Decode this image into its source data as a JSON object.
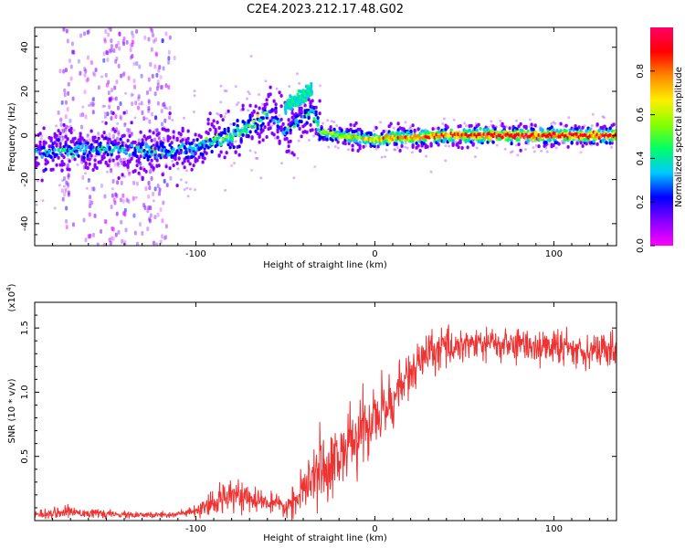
{
  "title": "C2E4.2023.212.17.48.G02",
  "chart_data": [
    {
      "type": "heatmap",
      "xlabel": "Height of straight line (km)",
      "ylabel": "Frequency (Hz)",
      "xlim": [
        -190,
        135
      ],
      "ylim": [
        -50,
        49
      ],
      "x_ticks": [
        -100,
        0,
        100
      ],
      "y_ticks": [
        -40,
        -20,
        0,
        20,
        40
      ],
      "colorbar": {
        "label": "Normalized spectral amplitude",
        "range": [
          0.0,
          1.0
        ],
        "ticks": [
          "0.0",
          "0.2",
          "0.4",
          "0.6",
          "0.8"
        ],
        "colormap": [
          "#ff00ff",
          "#8800ff",
          "#0000ff",
          "#00c8ff",
          "#00ff66",
          "#88ff00",
          "#ffee00",
          "#ff8800",
          "#ff0000",
          "#ff0066"
        ]
      },
      "ridge": {
        "x": [
          -190,
          -170,
          -150,
          -130,
          -110,
          -100,
          -90,
          -80,
          -70,
          -62,
          -58,
          -50,
          -45,
          -40,
          -35,
          -30,
          -20,
          -10,
          0,
          10,
          20,
          40,
          60,
          80,
          100,
          120,
          135
        ],
        "y": [
          -8,
          -7,
          -6,
          -7,
          -7,
          -6,
          -3,
          0,
          4,
          8,
          10,
          2,
          4,
          8,
          12,
          1,
          0,
          -1,
          -2,
          -1,
          -1,
          0,
          0,
          0,
          0,
          0,
          0
        ],
        "amplitude": [
          0.3,
          0.35,
          0.35,
          0.35,
          0.35,
          0.35,
          0.4,
          0.45,
          0.45,
          0.4,
          0.3,
          0.3,
          0.35,
          0.35,
          0.35,
          0.55,
          0.6,
          0.65,
          0.7,
          0.75,
          0.8,
          0.85,
          0.9,
          0.9,
          0.9,
          0.9,
          0.9
        ]
      },
      "upper_branch": {
        "x": [
          -50,
          -45,
          -40,
          -35
        ],
        "y": [
          13,
          15,
          18,
          21
        ]
      }
    },
    {
      "type": "line",
      "xlabel": "Height of straight line (km)",
      "ylabel": "SNR (10 * v/v)",
      "exponent_label": "(x10",
      "exponent_power": "4",
      "xlim": [
        -190,
        135
      ],
      "ylim": [
        0,
        1.7
      ],
      "x_ticks": [
        -100,
        0,
        100
      ],
      "y_ticks": [
        "0.5",
        "1.0",
        "1.5"
      ],
      "series": [
        {
          "color": "#ee3333",
          "x": [
            -190,
            -170,
            -150,
            -130,
            -110,
            -100,
            -90,
            -85,
            -80,
            -75,
            -70,
            -65,
            -60,
            -55,
            -50,
            -45,
            -40,
            -35,
            -30,
            -25,
            -20,
            -15,
            -10,
            -5,
            0,
            5,
            10,
            15,
            20,
            25,
            30,
            40,
            50,
            60,
            70,
            80,
            90,
            100,
            110,
            120,
            135
          ],
          "y": [
            0.05,
            0.07,
            0.05,
            0.04,
            0.05,
            0.07,
            0.12,
            0.18,
            0.25,
            0.2,
            0.15,
            0.16,
            0.14,
            0.12,
            0.1,
            0.15,
            0.22,
            0.3,
            0.42,
            0.45,
            0.5,
            0.58,
            0.65,
            0.72,
            0.8,
            0.85,
            0.95,
            1.05,
            1.15,
            1.22,
            1.3,
            1.35,
            1.38,
            1.38,
            1.37,
            1.37,
            1.36,
            1.35,
            1.34,
            1.33,
            1.32
          ],
          "noise": [
            0.04,
            0.05,
            0.03,
            0.03,
            0.03,
            0.05,
            0.1,
            0.15,
            0.15,
            0.12,
            0.1,
            0.1,
            0.08,
            0.08,
            0.08,
            0.12,
            0.2,
            0.25,
            0.3,
            0.3,
            0.3,
            0.3,
            0.3,
            0.3,
            0.3,
            0.28,
            0.25,
            0.22,
            0.2,
            0.2,
            0.18,
            0.16,
            0.15,
            0.15,
            0.15,
            0.15,
            0.15,
            0.15,
            0.15,
            0.15,
            0.15
          ]
        }
      ]
    }
  ]
}
